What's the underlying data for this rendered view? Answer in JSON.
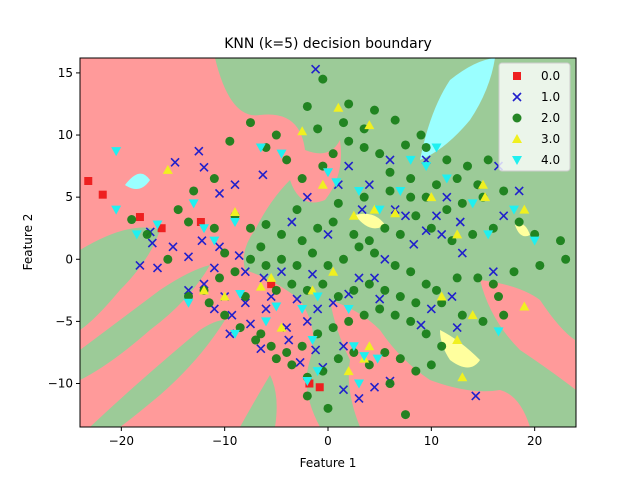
{
  "chart_data": {
    "type": "scatter",
    "title": "KNN (k=5) decision boundary",
    "xlabel": "Feature 1",
    "ylabel": "Feature 2",
    "xlim": [
      -24,
      24
    ],
    "ylim": [
      -13.5,
      16.2
    ],
    "xticks": [
      -20,
      -10,
      0,
      10,
      20
    ],
    "yticks": [
      -10,
      -5,
      0,
      5,
      10,
      15
    ],
    "grid": false,
    "legend_position": "top-right",
    "background_regions": {
      "description_colors": {
        "class0": "#ff9a9a",
        "class2": "#9ccb98",
        "class3": "#ffff9e",
        "class4": "#9affff"
      }
    },
    "series": [
      {
        "name": "0.0",
        "marker": "square",
        "color": "#ee2020",
        "points": [
          [
            -23.2,
            6.3
          ],
          [
            -21.8,
            5.2
          ],
          [
            -18.2,
            3.4
          ],
          [
            -16.1,
            2.5
          ],
          [
            -12.3,
            3.0
          ],
          [
            -5.5,
            -2.0
          ],
          [
            -1.8,
            -10.0
          ],
          [
            -0.8,
            -10.3
          ]
        ]
      },
      {
        "name": "1.0",
        "marker": "x",
        "color": "#2020cc",
        "points": [
          [
            -1.2,
            15.3
          ],
          [
            -12.5,
            8.7
          ],
          [
            -14.8,
            7.8
          ],
          [
            -12.0,
            7.4
          ],
          [
            -6.3,
            6.8
          ],
          [
            -9.0,
            6.0
          ],
          [
            -10.5,
            5.3
          ],
          [
            -17.2,
            2.2
          ],
          [
            -17.0,
            1.3
          ],
          [
            -15.0,
            1.0
          ],
          [
            -12.2,
            1.5
          ],
          [
            -10.5,
            1.0
          ],
          [
            -8.6,
            0.3
          ],
          [
            -13.5,
            0.2
          ],
          [
            -11.0,
            -0.7
          ],
          [
            -8.0,
            -1.0
          ],
          [
            -6.2,
            -1.5
          ],
          [
            -4.5,
            -1.0
          ],
          [
            -12.0,
            -2.0
          ],
          [
            -10.0,
            -3.0
          ],
          [
            -8.0,
            -3.5
          ],
          [
            -6.0,
            -4.0
          ],
          [
            -3.0,
            -3.2
          ],
          [
            -1.0,
            -4.0
          ],
          [
            -9.3,
            -4.5
          ],
          [
            -7.5,
            -5.2
          ],
          [
            -4.0,
            -5.5
          ],
          [
            -2.0,
            -5.0
          ],
          [
            0.5,
            -3.5
          ],
          [
            2.0,
            -2.8
          ],
          [
            5.0,
            -3.2
          ],
          [
            -6.5,
            -7.2
          ],
          [
            -3.8,
            -6.5
          ],
          [
            -1.2,
            -7.3
          ],
          [
            1.5,
            -7.0
          ],
          [
            -2.7,
            -8.3
          ],
          [
            -0.5,
            -8.7
          ],
          [
            3.0,
            -11.2
          ],
          [
            1.5,
            -10.5
          ],
          [
            4.5,
            -10.3
          ],
          [
            6.0,
            -9.8
          ],
          [
            9.0,
            -5.3
          ],
          [
            12.5,
            -5.5
          ],
          [
            14.3,
            -11.0
          ],
          [
            3.3,
            4.0
          ],
          [
            7.5,
            3.5
          ],
          [
            11.0,
            2.0
          ],
          [
            12.8,
            3.0
          ],
          [
            8.3,
            1.2
          ],
          [
            9.5,
            2.3
          ],
          [
            -3.5,
            3.0
          ],
          [
            3.0,
            -1.5
          ],
          [
            -16.5,
            -0.7
          ],
          [
            -2.0,
            5.0
          ],
          [
            1.0,
            6.0
          ],
          [
            2.0,
            7.5
          ],
          [
            4.0,
            6.0
          ],
          [
            6.0,
            8.0
          ],
          [
            9.5,
            8.0
          ],
          [
            11.5,
            5.0
          ],
          [
            16.5,
            7.5
          ],
          [
            17.0,
            3.5
          ],
          [
            18.5,
            5.5
          ],
          [
            12.0,
            -3.0
          ],
          [
            10.0,
            -4.0
          ],
          [
            4.5,
            -1.5
          ],
          [
            -18.2,
            -0.5
          ],
          [
            -13.5,
            -2.5
          ],
          [
            -11.0,
            -4.0
          ],
          [
            -9.5,
            -6.0
          ],
          [
            -5.5,
            -3.0
          ],
          [
            -1.5,
            -1.2
          ],
          [
            5.5,
            0.0
          ],
          [
            0.0,
            2.0
          ],
          [
            6.5,
            4.0
          ],
          [
            10.5,
            3.5
          ],
          [
            13.0,
            0.5
          ],
          [
            16.0,
            -1.0
          ]
        ]
      },
      {
        "name": "2.0",
        "marker": "circle",
        "color": "#1a801a",
        "points": [
          [
            -0.5,
            14.5
          ],
          [
            -2.0,
            12.3
          ],
          [
            -5.0,
            10.0
          ],
          [
            -1.0,
            10.5
          ],
          [
            1.5,
            11.0
          ],
          [
            3.5,
            10.5
          ],
          [
            6.5,
            11.2
          ],
          [
            7.5,
            9.2
          ],
          [
            9.5,
            9.0
          ],
          [
            11.5,
            8.0
          ],
          [
            13.5,
            7.5
          ],
          [
            15.5,
            8.0
          ],
          [
            17.0,
            5.5
          ],
          [
            15.0,
            5.0
          ],
          [
            13.0,
            4.5
          ],
          [
            11.5,
            4.0
          ],
          [
            9.5,
            5.0
          ],
          [
            8.0,
            6.5
          ],
          [
            6.0,
            7.0
          ],
          [
            5.0,
            8.5
          ],
          [
            3.5,
            9.0
          ],
          [
            2.0,
            9.5
          ],
          [
            0.5,
            8.5
          ],
          [
            -0.5,
            7.5
          ],
          [
            -2.5,
            6.5
          ],
          [
            -4.0,
            8.0
          ],
          [
            -6.0,
            9.0
          ],
          [
            -7.5,
            11.0
          ],
          [
            -9.5,
            9.5
          ],
          [
            -11.0,
            6.5
          ],
          [
            -13.0,
            5.5
          ],
          [
            -14.5,
            4.0
          ],
          [
            -13.5,
            3.0
          ],
          [
            -11.0,
            2.5
          ],
          [
            -9.0,
            3.5
          ],
          [
            -7.5,
            2.5
          ],
          [
            -6.0,
            2.8
          ],
          [
            -4.5,
            2.0
          ],
          [
            -2.5,
            1.5
          ],
          [
            -1.0,
            2.5
          ],
          [
            0.5,
            3.0
          ],
          [
            2.5,
            2.0
          ],
          [
            4.0,
            1.5
          ],
          [
            5.5,
            2.5
          ],
          [
            7.0,
            2.0
          ],
          [
            8.5,
            3.5
          ],
          [
            10.0,
            2.5
          ],
          [
            12.0,
            1.5
          ],
          [
            14.0,
            2.0
          ],
          [
            16.0,
            2.5
          ],
          [
            18.5,
            3.0
          ],
          [
            20.0,
            2.0
          ],
          [
            22.5,
            1.5
          ],
          [
            23.0,
            0.0
          ],
          [
            20.5,
            -0.5
          ],
          [
            18.0,
            -1.0
          ],
          [
            16.5,
            -3.0
          ],
          [
            17.0,
            -4.5
          ],
          [
            15.0,
            -5.0
          ],
          [
            13.0,
            -4.5
          ],
          [
            11.0,
            -3.5
          ],
          [
            9.5,
            -2.0
          ],
          [
            8.0,
            -1.0
          ],
          [
            6.5,
            -0.5
          ],
          [
            4.5,
            0.5
          ],
          [
            3.0,
            1.0
          ],
          [
            1.5,
            0.0
          ],
          [
            0.0,
            -0.5
          ],
          [
            -1.5,
            0.5
          ],
          [
            -3.0,
            -0.5
          ],
          [
            -4.5,
            0.0
          ],
          [
            -6.0,
            -0.5
          ],
          [
            -7.5,
            0.0
          ],
          [
            -9.0,
            -1.0
          ],
          [
            -10.5,
            -1.5
          ],
          [
            -12.0,
            -2.5
          ],
          [
            -13.5,
            -3.0
          ],
          [
            -11.5,
            -3.5
          ],
          [
            -10.0,
            -4.5
          ],
          [
            -8.5,
            -5.5
          ],
          [
            -7.0,
            -6.5
          ],
          [
            -5.5,
            -7.0
          ],
          [
            -4.0,
            -7.5
          ],
          [
            -2.5,
            -7.0
          ],
          [
            -1.0,
            -6.0
          ],
          [
            0.5,
            -5.5
          ],
          [
            2.0,
            -5.0
          ],
          [
            3.5,
            -4.5
          ],
          [
            5.0,
            -4.0
          ],
          [
            6.5,
            -4.5
          ],
          [
            8.0,
            -5.0
          ],
          [
            9.5,
            -6.0
          ],
          [
            11.0,
            -7.0
          ],
          [
            10.0,
            -8.5
          ],
          [
            8.5,
            -9.0
          ],
          [
            7.0,
            -8.0
          ],
          [
            5.5,
            -7.5
          ],
          [
            4.0,
            -8.5
          ],
          [
            2.5,
            -7.5
          ],
          [
            1.0,
            -8.0
          ],
          [
            -0.5,
            -9.0
          ],
          [
            -2.0,
            -9.5
          ],
          [
            -3.5,
            -8.5
          ],
          [
            -5.0,
            -8.0
          ],
          [
            -6.5,
            -6.0
          ],
          [
            -8.0,
            -3.0
          ],
          [
            -5.0,
            -2.5
          ],
          [
            -3.5,
            -2.0
          ],
          [
            -2.0,
            -2.5
          ],
          [
            -0.5,
            -2.0
          ],
          [
            1.0,
            -3.0
          ],
          [
            2.5,
            -2.5
          ],
          [
            4.0,
            -2.0
          ],
          [
            5.5,
            -2.5
          ],
          [
            7.0,
            -3.0
          ],
          [
            8.5,
            -3.5
          ],
          [
            10.5,
            -2.5
          ],
          [
            12.5,
            -1.5
          ],
          [
            14.5,
            -1.5
          ],
          [
            16.0,
            -2.0
          ],
          [
            -19.0,
            3.2
          ],
          [
            -15.5,
            0.0
          ],
          [
            -17.5,
            2.0
          ],
          [
            -10.0,
            0.5
          ],
          [
            -6.5,
            1.0
          ],
          [
            -3.0,
            4.0
          ],
          [
            1.0,
            4.5
          ],
          [
            3.5,
            5.0
          ],
          [
            6.0,
            5.5
          ],
          [
            8.0,
            5.0
          ],
          [
            10.5,
            6.0
          ],
          [
            12.5,
            6.5
          ],
          [
            14.5,
            6.0
          ],
          [
            9.0,
            10.0
          ],
          [
            4.5,
            12.0
          ],
          [
            2.0,
            12.5
          ],
          [
            6.0,
            -10.0
          ],
          [
            7.5,
            -12.5
          ],
          [
            -2.0,
            -11.0
          ],
          [
            0.0,
            -12.0
          ]
        ]
      },
      {
        "name": "3.0",
        "marker": "triangle-up",
        "color": "#f0f020",
        "points": [
          [
            -2.5,
            10.3
          ],
          [
            1.0,
            12.2
          ],
          [
            4.0,
            10.8
          ],
          [
            -15.5,
            7.2
          ],
          [
            -9.0,
            3.8
          ],
          [
            -0.5,
            6.0
          ],
          [
            2.5,
            3.5
          ],
          [
            4.5,
            4.0
          ],
          [
            6.5,
            3.7
          ],
          [
            12.5,
            2.0
          ],
          [
            15.0,
            6.0
          ],
          [
            15.2,
            5.0
          ],
          [
            19.0,
            4.0
          ],
          [
            10.0,
            5.0
          ],
          [
            -1.5,
            -2.5
          ],
          [
            -5.5,
            -1.5
          ],
          [
            -6.5,
            -2.2
          ],
          [
            -10.0,
            -3.0
          ],
          [
            -12.0,
            -2.5
          ],
          [
            4.0,
            -7.0
          ],
          [
            3.5,
            -8.0
          ],
          [
            11.0,
            -3.0
          ],
          [
            14.0,
            -4.5
          ],
          [
            12.5,
            -6.5
          ],
          [
            13.0,
            -9.5
          ],
          [
            19.0,
            -3.8
          ],
          [
            -4.5,
            -5.5
          ],
          [
            2.0,
            -9.0
          ],
          [
            0.5,
            -1.0
          ]
        ]
      },
      {
        "name": "4.0",
        "marker": "triangle-down",
        "color": "#20f0f0",
        "points": [
          [
            -20.5,
            8.7
          ],
          [
            -20.5,
            4.0
          ],
          [
            -18.5,
            2.0
          ],
          [
            -16.5,
            2.8
          ],
          [
            -13.0,
            4.5
          ],
          [
            -12.0,
            2.5
          ],
          [
            -11.0,
            1.5
          ],
          [
            -9.0,
            3.0
          ],
          [
            -6.5,
            9.0
          ],
          [
            -4.5,
            8.5
          ],
          [
            0.0,
            7.0
          ],
          [
            0.8,
            6.2
          ],
          [
            3.0,
            5.5
          ],
          [
            5.0,
            4.0
          ],
          [
            7.0,
            5.5
          ],
          [
            8.0,
            8.0
          ],
          [
            9.5,
            7.5
          ],
          [
            10.5,
            9.0
          ],
          [
            11.5,
            6.5
          ],
          [
            14.0,
            4.5
          ],
          [
            15.5,
            2.0
          ],
          [
            18.0,
            4.0
          ],
          [
            20.0,
            1.5
          ],
          [
            16.5,
            -5.8
          ],
          [
            -8.5,
            -2.8
          ],
          [
            -5.0,
            -3.8
          ],
          [
            -6.0,
            -5.0
          ],
          [
            -2.5,
            -4.0
          ],
          [
            -1.0,
            -3.0
          ],
          [
            2.0,
            -4.0
          ],
          [
            -1.0,
            -9.0
          ],
          [
            -2.0,
            -9.8
          ],
          [
            3.0,
            -10.0
          ],
          [
            4.8,
            -8.0
          ],
          [
            2.5,
            -7.0
          ],
          [
            3.5,
            -7.8
          ],
          [
            -1.5,
            -6.5
          ],
          [
            -9.0,
            -6.0
          ],
          [
            -13.5,
            -3.5
          ]
        ]
      }
    ]
  }
}
